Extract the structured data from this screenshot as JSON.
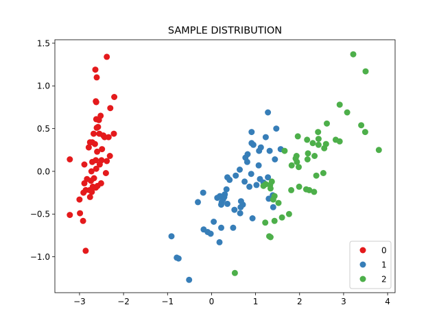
{
  "chart_data": {
    "type": "scatter",
    "title": "SAMPLE DISTRIBUTION",
    "xlabel": "",
    "ylabel": "",
    "xlim": [
      -3.56,
      4.17
    ],
    "ylim": [
      -1.42,
      1.54
    ],
    "xticks": [
      -3,
      -2,
      -1,
      0,
      1,
      2,
      3,
      4
    ],
    "xtick_labels": [
      "−3",
      "−2",
      "−1",
      "0",
      "1",
      "2",
      "3",
      "4"
    ],
    "yticks": [
      -1.0,
      -0.5,
      0.0,
      0.5,
      1.0,
      1.5
    ],
    "ytick_labels": [
      "−1.0",
      "−0.5",
      "0.0",
      "0.5",
      "1.0",
      "1.5"
    ],
    "grid": false,
    "legend_position": "lower-right",
    "series": [
      {
        "name": "0",
        "color": "#e41a1c",
        "points": [
          [
            -2.38,
            1.34
          ],
          [
            -2.64,
            1.19
          ],
          [
            -2.61,
            1.1
          ],
          [
            -2.21,
            0.87
          ],
          [
            -2.63,
            0.82
          ],
          [
            -2.62,
            0.81
          ],
          [
            -2.3,
            0.74
          ],
          [
            -2.52,
            0.65
          ],
          [
            -2.62,
            0.61
          ],
          [
            -2.56,
            0.6
          ],
          [
            -2.58,
            0.52
          ],
          [
            -2.61,
            0.51
          ],
          [
            -2.68,
            0.44
          ],
          [
            -2.55,
            0.44
          ],
          [
            -2.22,
            0.44
          ],
          [
            -2.46,
            0.42
          ],
          [
            -2.34,
            0.4
          ],
          [
            -2.43,
            0.4
          ],
          [
            -2.76,
            0.34
          ],
          [
            -2.71,
            0.34
          ],
          [
            -2.65,
            0.32
          ],
          [
            -2.79,
            0.28
          ],
          [
            -2.49,
            0.26
          ],
          [
            -2.6,
            0.23
          ],
          [
            -2.31,
            0.18
          ],
          [
            -2.5,
            0.13
          ],
          [
            -2.63,
            0.13
          ],
          [
            -2.71,
            0.11
          ],
          [
            -2.89,
            0.08
          ],
          [
            -2.54,
            0.08
          ],
          [
            -2.38,
            0.12
          ],
          [
            -3.22,
            0.14
          ],
          [
            -2.62,
            0.03
          ],
          [
            -2.73,
            0.0
          ],
          [
            -2.4,
            -0.02
          ],
          [
            -2.67,
            -0.08
          ],
          [
            -2.83,
            -0.09
          ],
          [
            -2.74,
            -0.11
          ],
          [
            -2.51,
            -0.14
          ],
          [
            -2.89,
            -0.14
          ],
          [
            -2.59,
            -0.17
          ],
          [
            -2.7,
            -0.18
          ],
          [
            -2.63,
            -0.19
          ],
          [
            -2.86,
            -0.22
          ],
          [
            -2.77,
            -0.22
          ],
          [
            -2.72,
            -0.24
          ],
          [
            -2.91,
            -0.25
          ],
          [
            -2.76,
            -0.3
          ],
          [
            -3.0,
            -0.33
          ],
          [
            -3.22,
            -0.51
          ],
          [
            -2.99,
            -0.49
          ],
          [
            -2.92,
            -0.58
          ],
          [
            -2.86,
            -0.93
          ]
        ]
      },
      {
        "name": "1",
        "color": "#377eb8",
        "points": [
          [
            1.28,
            0.69
          ],
          [
            1.47,
            0.5
          ],
          [
            0.91,
            0.46
          ],
          [
            1.23,
            0.4
          ],
          [
            0.91,
            0.33
          ],
          [
            0.95,
            0.31
          ],
          [
            1.57,
            0.26
          ],
          [
            1.12,
            0.28
          ],
          [
            1.32,
            0.24
          ],
          [
            1.08,
            0.24
          ],
          [
            0.82,
            0.2
          ],
          [
            0.77,
            0.16
          ],
          [
            1.44,
            0.14
          ],
          [
            0.81,
            0.11
          ],
          [
            1.07,
            0.07
          ],
          [
            0.64,
            0.02
          ],
          [
            0.9,
            -0.03
          ],
          [
            0.55,
            -0.05
          ],
          [
            0.36,
            -0.07
          ],
          [
            1.28,
            -0.07
          ],
          [
            1.1,
            -0.09
          ],
          [
            0.41,
            -0.1
          ],
          [
            0.75,
            -0.12
          ],
          [
            1.18,
            -0.13
          ],
          [
            1.02,
            -0.16
          ],
          [
            0.86,
            -0.18
          ],
          [
            -0.19,
            -0.25
          ],
          [
            0.34,
            -0.21
          ],
          [
            0.3,
            -0.27
          ],
          [
            0.19,
            -0.29
          ],
          [
            0.29,
            -0.3
          ],
          [
            0.13,
            -0.31
          ],
          [
            0.26,
            -0.33
          ],
          [
            0.67,
            -0.35
          ],
          [
            0.23,
            -0.36
          ],
          [
            0.36,
            -0.38
          ],
          [
            -0.31,
            -0.36
          ],
          [
            1.39,
            -0.28
          ],
          [
            1.3,
            -0.32
          ],
          [
            0.22,
            -0.39
          ],
          [
            0.71,
            -0.39
          ],
          [
            0.66,
            -0.42
          ],
          [
            1.4,
            -0.42
          ],
          [
            0.52,
            -0.45
          ],
          [
            0.65,
            -0.49
          ],
          [
            0.05,
            -0.59
          ],
          [
            0.93,
            -0.55
          ],
          [
            0.49,
            -0.66
          ],
          [
            0.22,
            -0.66
          ],
          [
            -0.18,
            -0.68
          ],
          [
            -0.09,
            -0.71
          ],
          [
            -0.02,
            -0.73
          ],
          [
            0.18,
            -0.83
          ],
          [
            -0.91,
            -0.76
          ],
          [
            -0.79,
            -1.01
          ],
          [
            -0.75,
            -1.02
          ],
          [
            -0.51,
            -1.27
          ]
        ]
      },
      {
        "name": "2",
        "color": "#4daf4a",
        "points": [
          [
            3.22,
            1.37
          ],
          [
            3.5,
            1.17
          ],
          [
            2.91,
            0.78
          ],
          [
            3.08,
            0.69
          ],
          [
            2.62,
            0.56
          ],
          [
            3.4,
            0.54
          ],
          [
            3.49,
            0.46
          ],
          [
            2.42,
            0.46
          ],
          [
            1.96,
            0.41
          ],
          [
            2.17,
            0.37
          ],
          [
            2.43,
            0.38
          ],
          [
            2.82,
            0.37
          ],
          [
            2.91,
            0.35
          ],
          [
            2.3,
            0.33
          ],
          [
            2.43,
            0.31
          ],
          [
            2.6,
            0.32
          ],
          [
            3.8,
            0.25
          ],
          [
            2.56,
            0.27
          ],
          [
            1.66,
            0.24
          ],
          [
            2.19,
            0.21
          ],
          [
            2.34,
            0.18
          ],
          [
            1.93,
            0.18
          ],
          [
            1.91,
            0.15
          ],
          [
            2.18,
            0.14
          ],
          [
            1.94,
            0.11
          ],
          [
            1.82,
            0.07
          ],
          [
            1.98,
            0.05
          ],
          [
            2.54,
            -0.02
          ],
          [
            2.38,
            -0.05
          ],
          [
            1.37,
            -0.12
          ],
          [
            1.23,
            -0.15
          ],
          [
            1.33,
            -0.16
          ],
          [
            1.18,
            -0.17
          ],
          [
            1.34,
            -0.2
          ],
          [
            1.99,
            -0.18
          ],
          [
            2.15,
            -0.21
          ],
          [
            2.22,
            -0.22
          ],
          [
            1.81,
            -0.22
          ],
          [
            2.33,
            -0.24
          ],
          [
            1.43,
            -0.29
          ],
          [
            1.4,
            -0.33
          ],
          [
            1.52,
            -0.37
          ],
          [
            1.76,
            -0.5
          ],
          [
            1.6,
            -0.54
          ],
          [
            1.43,
            -0.58
          ],
          [
            1.22,
            -0.6
          ],
          [
            1.34,
            -0.77
          ],
          [
            1.31,
            -0.76
          ],
          [
            0.53,
            -1.19
          ]
        ]
      }
    ]
  }
}
